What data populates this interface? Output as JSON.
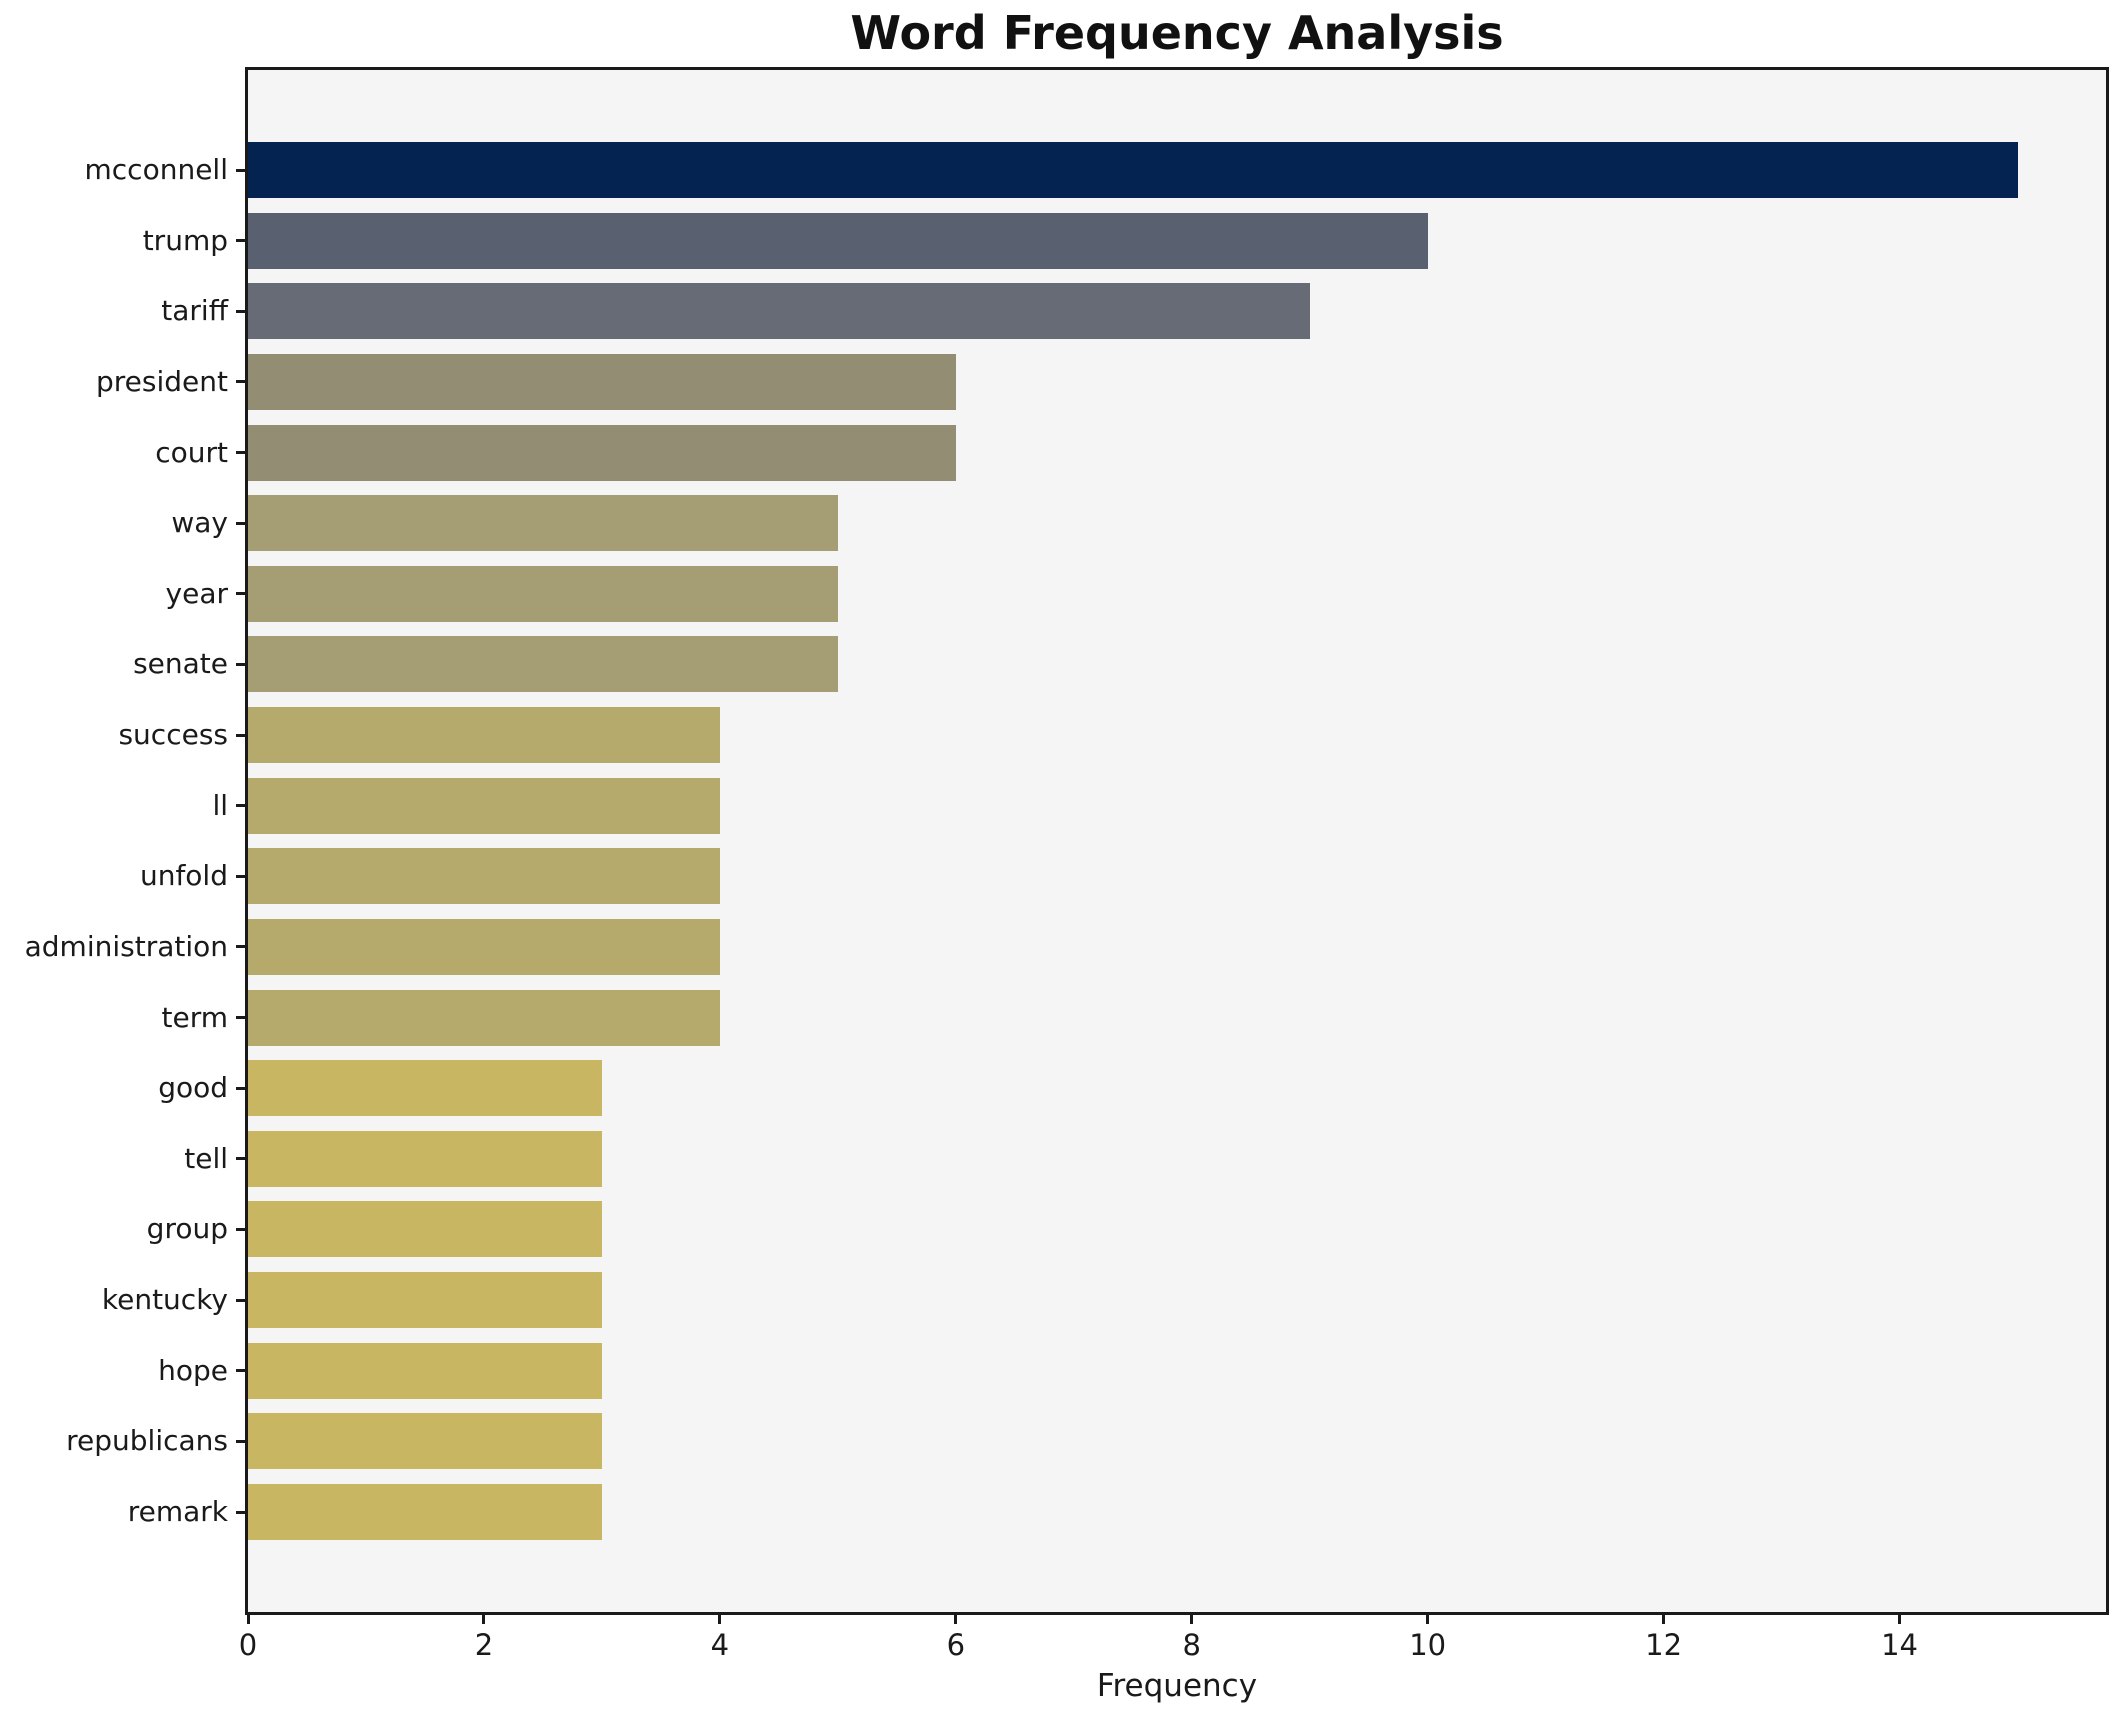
{
  "figure": {
    "title": "Word Frequency Analysis",
    "xlabel": "Frequency",
    "background_color": "#ffffff",
    "plot_background_color": "#f5f5f6",
    "spine_color": "#1a1a1a",
    "text_color": "#1a1a1a"
  },
  "chart_data": {
    "type": "bar",
    "orientation": "horizontal",
    "title": "Word Frequency Analysis",
    "xlabel": "Frequency",
    "ylabel": "",
    "categories": [
      "mcconnell",
      "trump",
      "tariff",
      "president",
      "court",
      "way",
      "year",
      "senate",
      "success",
      "ll",
      "unfold",
      "administration",
      "term",
      "good",
      "tell",
      "group",
      "kentucky",
      "hope",
      "republicans",
      "remark"
    ],
    "values": [
      15,
      10,
      9,
      6,
      6,
      5,
      5,
      5,
      4,
      4,
      4,
      4,
      4,
      3,
      3,
      3,
      3,
      3,
      3,
      3
    ],
    "bar_colors": [
      "#042350",
      "#596070",
      "#676b76",
      "#938e73",
      "#938e73",
      "#a59d73",
      "#a59d73",
      "#a59d73",
      "#b5a96c",
      "#b5a96c",
      "#b5a96c",
      "#b5a96c",
      "#b5a96c",
      "#c9b662",
      "#c9b662",
      "#c9b662",
      "#c9b662",
      "#c9b662",
      "#c9b662",
      "#c9b662"
    ],
    "xlim": [
      0,
      15.75
    ],
    "x_ticks": [
      0,
      2,
      4,
      6,
      8,
      10,
      12,
      14
    ],
    "grid": false,
    "legend_position": "none"
  }
}
